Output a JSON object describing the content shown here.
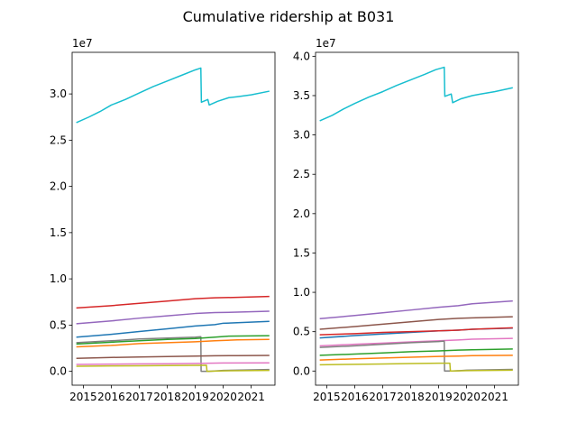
{
  "figure": {
    "title": "Cumulative ridership at B031"
  },
  "chart_data": [
    {
      "type": "line",
      "title": "",
      "xlabel": "",
      "ylabel": "",
      "y_offset_label": "1e7",
      "xlim": [
        2014.6,
        2021.85
      ],
      "ylim": [
        -0.15,
        3.45
      ],
      "xticks": [
        2015,
        2016,
        2017,
        2018,
        2019,
        2020,
        2021
      ],
      "xtick_labels": [
        "2015",
        "2016",
        "2017",
        "2018",
        "2019",
        "2020",
        "2021"
      ],
      "yticks": [
        0.0,
        0.5,
        1.0,
        1.5,
        2.0,
        2.5,
        3.0
      ],
      "ytick_labels": [
        "0.0",
        "0.5",
        "1.0",
        "1.5",
        "2.0",
        "2.5",
        "3.0"
      ],
      "grid": false,
      "series": [
        {
          "color": "#17becf",
          "x": [
            2014.75,
            2015.2,
            2015.6,
            2016.0,
            2016.5,
            2017.0,
            2017.5,
            2018.0,
            2018.5,
            2019.0,
            2019.2,
            2019.22,
            2019.45,
            2019.5,
            2019.8,
            2020.2,
            2020.5,
            2021.0,
            2021.65
          ],
          "y": [
            2.69,
            2.75,
            2.81,
            2.88,
            2.94,
            3.01,
            3.08,
            3.14,
            3.2,
            3.26,
            3.28,
            2.91,
            2.94,
            2.88,
            2.92,
            2.96,
            2.97,
            2.99,
            3.03
          ]
        },
        {
          "color": "#d62728",
          "x": [
            2014.75,
            2016.0,
            2017.0,
            2018.0,
            2019.0,
            2019.7,
            2020.5,
            2021.65
          ],
          "y": [
            0.685,
            0.71,
            0.735,
            0.76,
            0.785,
            0.795,
            0.8,
            0.81
          ]
        },
        {
          "color": "#9467bd",
          "x": [
            2014.75,
            2016.0,
            2017.0,
            2018.0,
            2019.0,
            2019.7,
            2020.5,
            2021.65
          ],
          "y": [
            0.515,
            0.545,
            0.575,
            0.6,
            0.625,
            0.635,
            0.64,
            0.65
          ]
        },
        {
          "color": "#1f77b4",
          "x": [
            2014.75,
            2016.0,
            2017.0,
            2018.0,
            2019.0,
            2019.7,
            2020.0,
            2020.5,
            2021.65
          ],
          "y": [
            0.37,
            0.4,
            0.43,
            0.46,
            0.49,
            0.505,
            0.52,
            0.525,
            0.54
          ]
        },
        {
          "color": "#7f7f7f",
          "x": [
            2014.75,
            2016.0,
            2017.0,
            2018.0,
            2019.0,
            2019.2,
            2019.21,
            2019.5,
            2020.0,
            2021.65
          ],
          "y": [
            0.31,
            0.33,
            0.35,
            0.36,
            0.37,
            0.375,
            0.0,
            0.0,
            0.01,
            0.02
          ]
        },
        {
          "color": "#2ca02c",
          "x": [
            2014.75,
            2016.0,
            2017.0,
            2018.0,
            2019.0,
            2019.7,
            2020.2,
            2021.65
          ],
          "y": [
            0.295,
            0.315,
            0.33,
            0.345,
            0.355,
            0.37,
            0.38,
            0.385
          ]
        },
        {
          "color": "#ff7f0e",
          "x": [
            2014.75,
            2016.0,
            2017.0,
            2018.0,
            2019.0,
            2019.7,
            2020.5,
            2021.65
          ],
          "y": [
            0.265,
            0.28,
            0.3,
            0.31,
            0.32,
            0.33,
            0.34,
            0.345
          ]
        },
        {
          "color": "#8c564b",
          "x": [
            2014.75,
            2016.0,
            2017.0,
            2018.0,
            2019.0,
            2019.7,
            2020.5,
            2021.65
          ],
          "y": [
            0.14,
            0.15,
            0.155,
            0.16,
            0.165,
            0.168,
            0.17,
            0.172
          ]
        },
        {
          "color": "#e377c2",
          "x": [
            2014.75,
            2016.0,
            2017.0,
            2018.0,
            2019.0,
            2019.5,
            2020.0,
            2021.65
          ],
          "y": [
            0.075,
            0.078,
            0.08,
            0.082,
            0.085,
            0.088,
            0.09,
            0.092
          ]
        },
        {
          "color": "#bcbd22",
          "x": [
            2014.75,
            2016.0,
            2017.0,
            2018.0,
            2019.0,
            2019.4,
            2019.42,
            2020.0,
            2021.65
          ],
          "y": [
            0.055,
            0.058,
            0.06,
            0.062,
            0.065,
            0.066,
            0.0,
            0.005,
            0.01
          ]
        }
      ]
    },
    {
      "type": "line",
      "title": "",
      "xlabel": "",
      "ylabel": "",
      "y_offset_label": "1e7",
      "xlim": [
        2014.6,
        2021.85
      ],
      "ylim": [
        -0.18,
        4.05
      ],
      "xticks": [
        2015,
        2016,
        2017,
        2018,
        2019,
        2020,
        2021
      ],
      "xtick_labels": [
        "2015",
        "2016",
        "2017",
        "2018",
        "2019",
        "2020",
        "2021"
      ],
      "yticks": [
        0.0,
        0.5,
        1.0,
        1.5,
        2.0,
        2.5,
        3.0,
        3.5,
        4.0
      ],
      "ytick_labels": [
        "0.0",
        "0.5",
        "1.0",
        "1.5",
        "2.0",
        "2.5",
        "3.0",
        "3.5",
        "4.0"
      ],
      "grid": false,
      "series": [
        {
          "color": "#17becf",
          "x": [
            2014.75,
            2015.2,
            2015.6,
            2016.0,
            2016.5,
            2017.0,
            2017.5,
            2018.0,
            2018.5,
            2018.9,
            2019.2,
            2019.22,
            2019.45,
            2019.5,
            2019.8,
            2020.2,
            2020.5,
            2021.0,
            2021.65
          ],
          "y": [
            3.18,
            3.25,
            3.33,
            3.4,
            3.48,
            3.55,
            3.63,
            3.7,
            3.77,
            3.83,
            3.86,
            3.49,
            3.52,
            3.41,
            3.46,
            3.5,
            3.52,
            3.55,
            3.6
          ]
        },
        {
          "color": "#9467bd",
          "x": [
            2014.75,
            2016.0,
            2017.0,
            2018.0,
            2019.0,
            2019.7,
            2020.2,
            2021.65
          ],
          "y": [
            0.665,
            0.705,
            0.74,
            0.775,
            0.81,
            0.83,
            0.855,
            0.89
          ]
        },
        {
          "color": "#8c564b",
          "x": [
            2014.75,
            2016.0,
            2017.0,
            2018.0,
            2019.0,
            2019.7,
            2020.2,
            2021.65
          ],
          "y": [
            0.53,
            0.565,
            0.595,
            0.625,
            0.655,
            0.67,
            0.675,
            0.69
          ]
        },
        {
          "color": "#1f77b4",
          "x": [
            2014.75,
            2016.0,
            2017.0,
            2018.0,
            2019.0,
            2019.7,
            2020.2,
            2021.65
          ],
          "y": [
            0.42,
            0.45,
            0.47,
            0.49,
            0.51,
            0.52,
            0.53,
            0.545
          ]
        },
        {
          "color": "#d62728",
          "x": [
            2014.75,
            2016.0,
            2017.0,
            2018.0,
            2019.0,
            2019.7,
            2020.2,
            2021.65
          ],
          "y": [
            0.46,
            0.475,
            0.49,
            0.5,
            0.51,
            0.52,
            0.53,
            0.55
          ]
        },
        {
          "color": "#e377c2",
          "x": [
            2014.75,
            2016.0,
            2017.0,
            2018.0,
            2019.0,
            2019.7,
            2020.2,
            2021.65
          ],
          "y": [
            0.32,
            0.34,
            0.355,
            0.37,
            0.385,
            0.395,
            0.405,
            0.415
          ]
        },
        {
          "color": "#7f7f7f",
          "x": [
            2014.75,
            2016.0,
            2017.0,
            2018.0,
            2019.0,
            2019.2,
            2019.21,
            2019.5,
            2020.0,
            2021.65
          ],
          "y": [
            0.3,
            0.32,
            0.34,
            0.36,
            0.375,
            0.38,
            0.0,
            0.0,
            0.01,
            0.02
          ]
        },
        {
          "color": "#2ca02c",
          "x": [
            2014.75,
            2016.0,
            2017.0,
            2018.0,
            2019.0,
            2019.7,
            2020.2,
            2021.65
          ],
          "y": [
            0.2,
            0.215,
            0.23,
            0.245,
            0.255,
            0.265,
            0.27,
            0.28
          ]
        },
        {
          "color": "#ff7f0e",
          "x": [
            2014.75,
            2016.0,
            2017.0,
            2018.0,
            2019.0,
            2019.7,
            2020.2,
            2021.65
          ],
          "y": [
            0.14,
            0.155,
            0.165,
            0.175,
            0.185,
            0.19,
            0.195,
            0.2
          ]
        },
        {
          "color": "#bcbd22",
          "x": [
            2014.75,
            2016.0,
            2017.0,
            2018.0,
            2019.0,
            2019.4,
            2019.42,
            2020.0,
            2021.65
          ],
          "y": [
            0.08,
            0.085,
            0.09,
            0.095,
            0.1,
            0.1,
            0.0,
            0.005,
            0.01
          ]
        }
      ]
    }
  ]
}
